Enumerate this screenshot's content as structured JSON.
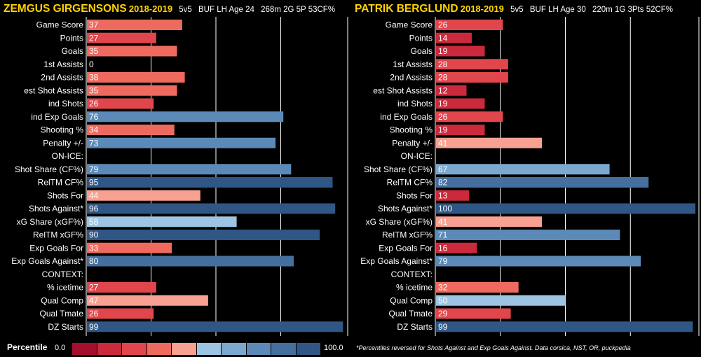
{
  "chart_data": [
    {
      "type": "bar",
      "orientation": "horizontal",
      "player": "ZEMGUS GIRGENSONS",
      "season": "2018-2019",
      "strength": "5v5",
      "team": "BUF",
      "position": "LH",
      "age": "Age 24",
      "stats_line": "268m 2G 5P 53CF%",
      "xlim": [
        0,
        100
      ],
      "grid": true,
      "categories": [
        "Game Score",
        "Points",
        "Goals",
        "1st Assists",
        "2nd Assists",
        "est Shot Assists",
        "ind Shots",
        "ind Exp Goals",
        "Shooting %",
        "Penalty +/-",
        "ON-ICE:",
        "Shot Share (CF%)",
        "RelTM CF%",
        "Shots For",
        "Shots Against*",
        "xG Share (xGF%)",
        "RelTM xGF%",
        "Exp Goals For",
        "Exp Goals Against*",
        "CONTEXT:",
        "% icetime",
        "Qual Comp",
        "Qual Tmate",
        "DZ Starts"
      ],
      "values": [
        37,
        27,
        35,
        0,
        38,
        35,
        26,
        76,
        34,
        73,
        null,
        79,
        95,
        44,
        96,
        58,
        90,
        33,
        80,
        null,
        27,
        47,
        26,
        99
      ]
    },
    {
      "type": "bar",
      "orientation": "horizontal",
      "player": "PATRIK BERGLUND",
      "season": "2018-2019",
      "strength": "5v5",
      "team": "BUF",
      "position": "LH",
      "age": "Age 30",
      "stats_line": "220m 1G 3Pts 52CF%",
      "xlim": [
        0,
        100
      ],
      "grid": true,
      "categories": [
        "Game Score",
        "Points",
        "Goals",
        "1st Assists",
        "2nd Assists",
        "est Shot Assists",
        "ind Shots",
        "ind Exp Goals",
        "Shooting %",
        "Penalty +/-",
        "ON-ICE:",
        "Shot Share (CF%)",
        "RelTM CF%",
        "Shots For",
        "Shots Against*",
        "xG Share (xGF%)",
        "RelTM xGF%",
        "Exp Goals For",
        "Exp Goals Against*",
        "CONTEXT:",
        "% icetime",
        "Qual Comp",
        "Qual Tmate",
        "DZ Starts"
      ],
      "values": [
        26,
        14,
        19,
        28,
        28,
        12,
        19,
        26,
        19,
        41,
        null,
        67,
        82,
        13,
        100,
        41,
        71,
        16,
        79,
        null,
        32,
        50,
        29,
        99
      ]
    }
  ],
  "legend": {
    "label": "Percentile",
    "min_label": "0.0",
    "max_label": "100.0",
    "colors": [
      "#a50f2d",
      "#cb2a3c",
      "#e0464c",
      "#ef6a5e",
      "#f8a091",
      "#9cc5e3",
      "#7aa8cf",
      "#5b8ab8",
      "#456f9f",
      "#2f5685"
    ]
  },
  "footnote": "*Percentiles reversed for Shots Against and Exp Goals Against. Data corsica, NST, OR, puckpedia"
}
